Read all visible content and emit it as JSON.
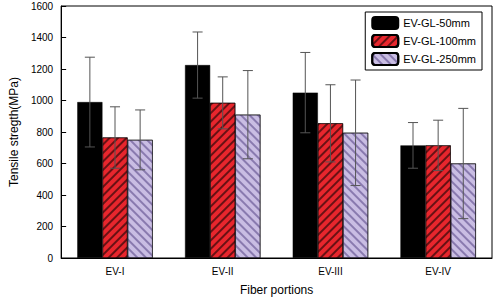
{
  "chart_data": {
    "type": "bar",
    "x_label": "Fiber portions",
    "y_label": "Tensile stregth(MPa)",
    "categories": [
      "EV-I",
      "EV-II",
      "EV-III",
      "EV-IV"
    ],
    "series": [
      {
        "name": "EV-GL-50mm",
        "color": "#000000",
        "values": [
          990,
          1225,
          1050,
          715
        ],
        "errors": [
          285,
          210,
          255,
          145
        ]
      },
      {
        "name": "EV-GL-100mm",
        "color": "#e8262d",
        "values": [
          765,
          985,
          855,
          715
        ],
        "errors": [
          195,
          165,
          245,
          160
        ]
      },
      {
        "name": "EV-GL-250mm",
        "color": "#c9bde3",
        "values": [
          750,
          910,
          795,
          600
        ],
        "errors": [
          190,
          280,
          335,
          350
        ]
      }
    ],
    "ylim": [
      0,
      1600
    ],
    "yticks": [
      0,
      200,
      400,
      600,
      800,
      1000,
      1200,
      1400,
      1600
    ],
    "grid": false,
    "legend": "upper right"
  }
}
